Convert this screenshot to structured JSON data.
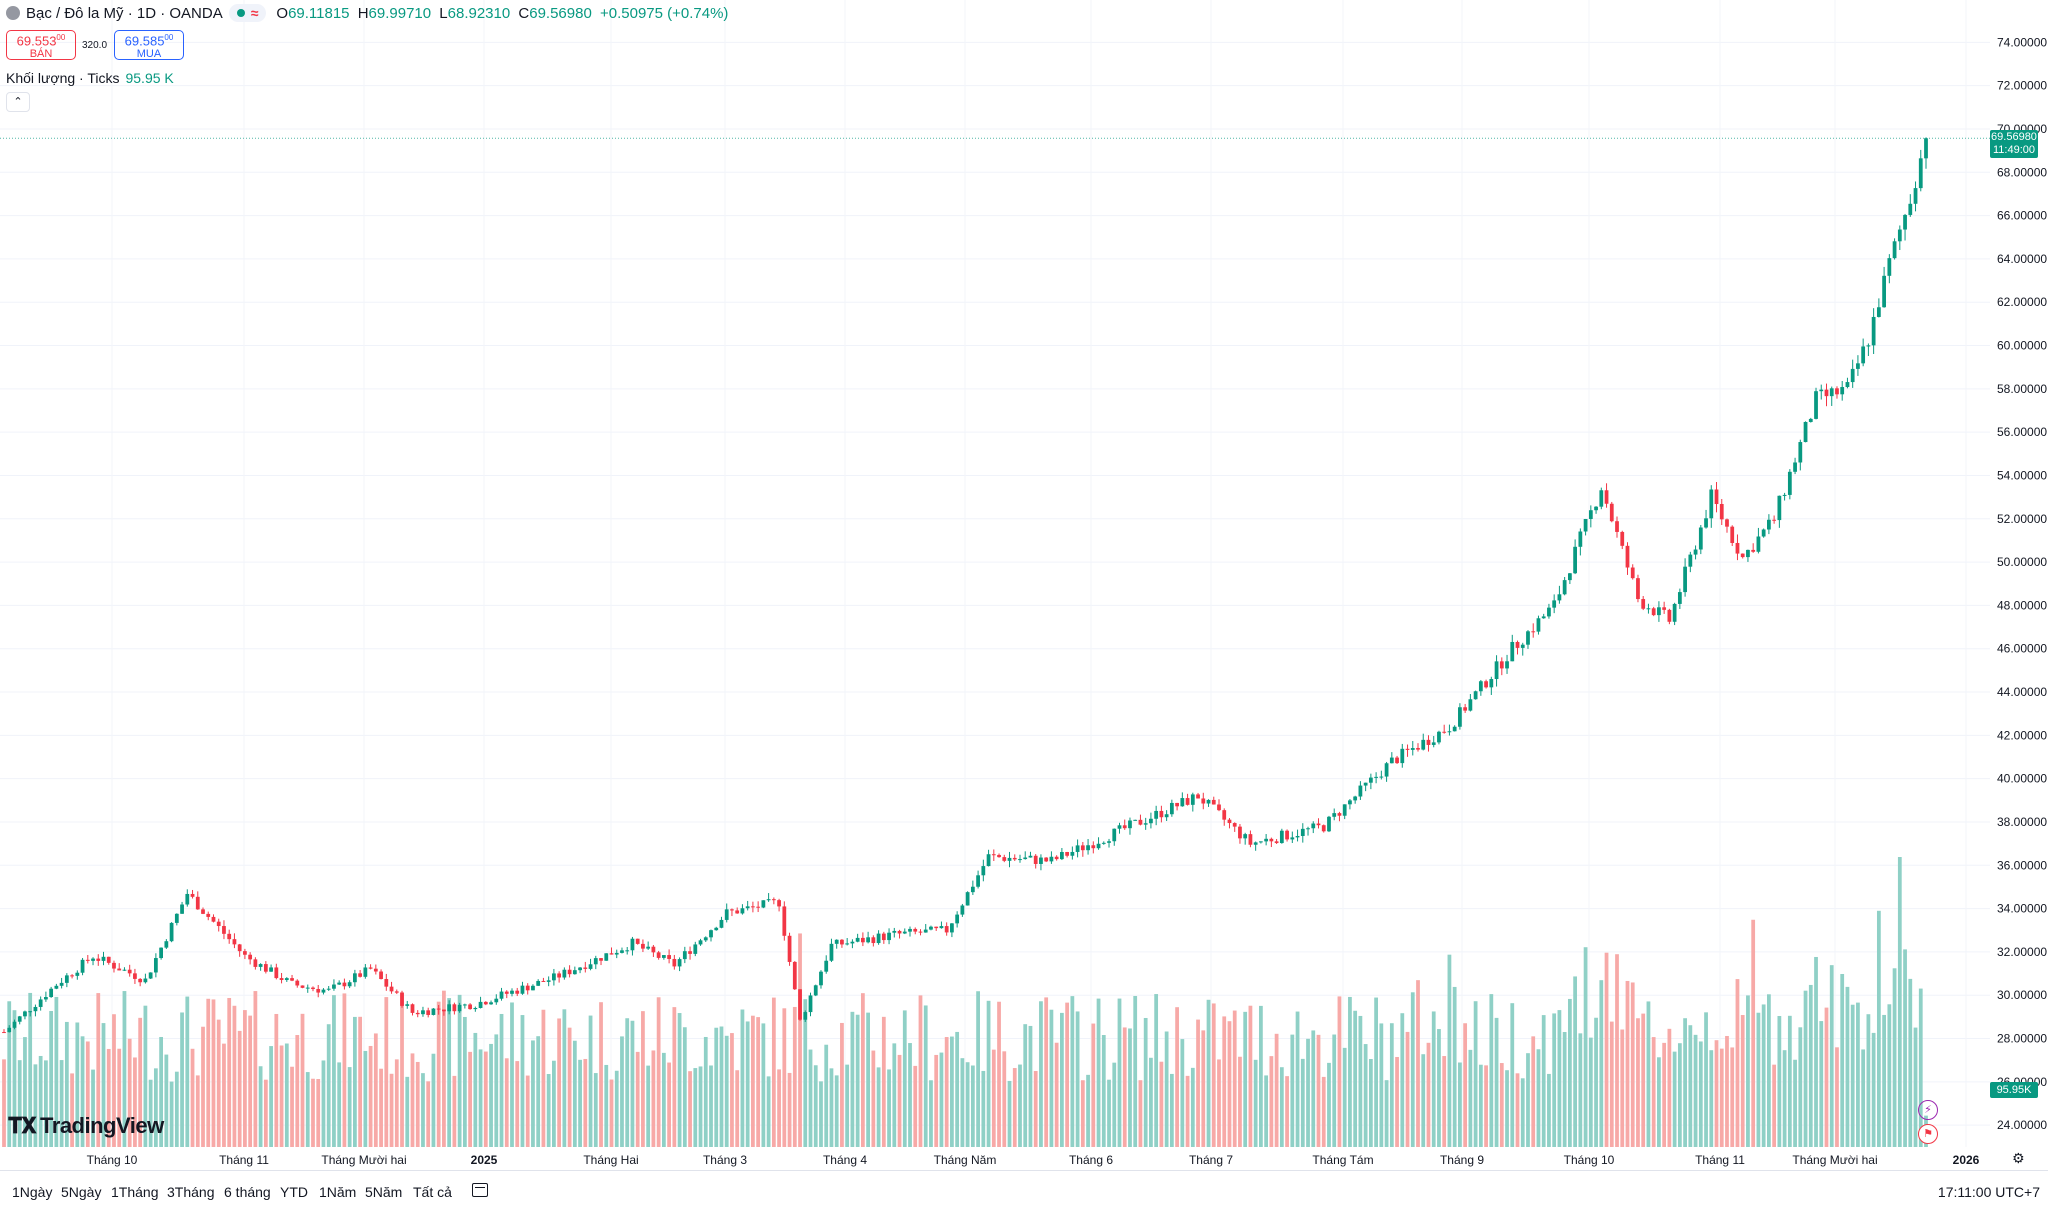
{
  "header": {
    "symbol_title": "Bạc / Đô la Mỹ · 1D · OANDA",
    "wave_icon": "≈",
    "ohlc": {
      "o_label": "O",
      "o_value": "69.11815",
      "h_label": "H",
      "h_value": "69.99710",
      "l_label": "L",
      "l_value": "68.92310",
      "c_label": "C",
      "c_value": "69.56980",
      "change": "+0.50975 (+0.74%)"
    }
  },
  "trade": {
    "sell_price": "69.553",
    "sell_price_sup": "00",
    "sell_label": "BÁN",
    "spread": "320.0",
    "buy_price": "69.585",
    "buy_price_sup": "00",
    "buy_label": "MUA"
  },
  "volume_legend": {
    "label": "Khối lượng · Ticks",
    "value": "95.95 K"
  },
  "collapse_icon": "chevron-up-icon",
  "logo_text": "TradingView",
  "price_tag": {
    "price": "69.56980",
    "time": "11:49:00"
  },
  "volume_tag": "95.95K",
  "colors": {
    "up": "#089981",
    "down": "#f23645",
    "up_vol": "#8fd0c6",
    "down_vol": "#f7a9a7"
  },
  "bottom_bar": {
    "ranges": [
      "1Ngày",
      "5Ngày",
      "1Tháng",
      "3Tháng",
      "6 tháng",
      "YTD",
      "1Năm",
      "5Năm",
      "Tất cả"
    ],
    "clock": "17:11:00 UTC+7"
  },
  "chart_data": {
    "type": "candlestick",
    "title": "Bạc / Đô la Mỹ",
    "interval": "1D",
    "ylim": [
      23.5,
      74.8
    ],
    "y_ticks": [
      "24.00000",
      "26.00000",
      "28.00000",
      "30.00000",
      "32.00000",
      "34.00000",
      "36.00000",
      "38.00000",
      "40.00000",
      "42.00000",
      "44.00000",
      "46.00000",
      "48.00000",
      "50.00000",
      "52.00000",
      "54.00000",
      "56.00000",
      "58.00000",
      "60.00000",
      "62.00000",
      "64.00000",
      "66.00000",
      "68.00000",
      "70.00000",
      "72.00000",
      "74.00000"
    ],
    "x_ticks": [
      "Tháng 10",
      "Tháng 11",
      "Tháng Mười hai",
      "2025",
      "Tháng Hai",
      "Tháng 3",
      "Tháng 4",
      "Tháng Năm",
      "Tháng 6",
      "Tháng 7",
      "Tháng Tám",
      "Tháng 9",
      "Tháng 10",
      "Tháng 11",
      "Tháng Mười hai",
      "2026"
    ],
    "x_ticks_bold": [
      "2025",
      "2026"
    ],
    "grid": true,
    "last_price": 69.5698,
    "anchors": [
      [
        0,
        28.3
      ],
      [
        10,
        30.5
      ],
      [
        17,
        31.8
      ],
      [
        27,
        30.7
      ],
      [
        35,
        34.7
      ],
      [
        46,
        31.8
      ],
      [
        55,
        30.5
      ],
      [
        62,
        30.2
      ],
      [
        70,
        31.2
      ],
      [
        78,
        29.2
      ],
      [
        90,
        29.6
      ],
      [
        105,
        30.8
      ],
      [
        120,
        32.4
      ],
      [
        128,
        31.4
      ],
      [
        138,
        33.8
      ],
      [
        148,
        34.3
      ],
      [
        152,
        28.8
      ],
      [
        158,
        32.3
      ],
      [
        170,
        32.8
      ],
      [
        180,
        33.0
      ],
      [
        188,
        36.4
      ],
      [
        200,
        36.2
      ],
      [
        215,
        37.8
      ],
      [
        228,
        39.2
      ],
      [
        238,
        37.0
      ],
      [
        252,
        37.8
      ],
      [
        265,
        40.8
      ],
      [
        276,
        42.4
      ],
      [
        288,
        46.0
      ],
      [
        296,
        48.0
      ],
      [
        305,
        53.5
      ],
      [
        312,
        48.3
      ],
      [
        318,
        47.3
      ],
      [
        326,
        53.0
      ],
      [
        332,
        50.2
      ],
      [
        338,
        52.0
      ],
      [
        346,
        57.5
      ],
      [
        352,
        58.0
      ],
      [
        356,
        60.3
      ],
      [
        360,
        63.8
      ],
      [
        364,
        66.8
      ],
      [
        367,
        69.57
      ]
    ],
    "volume_note": "tick volume per day, last bar 95.95 K"
  }
}
